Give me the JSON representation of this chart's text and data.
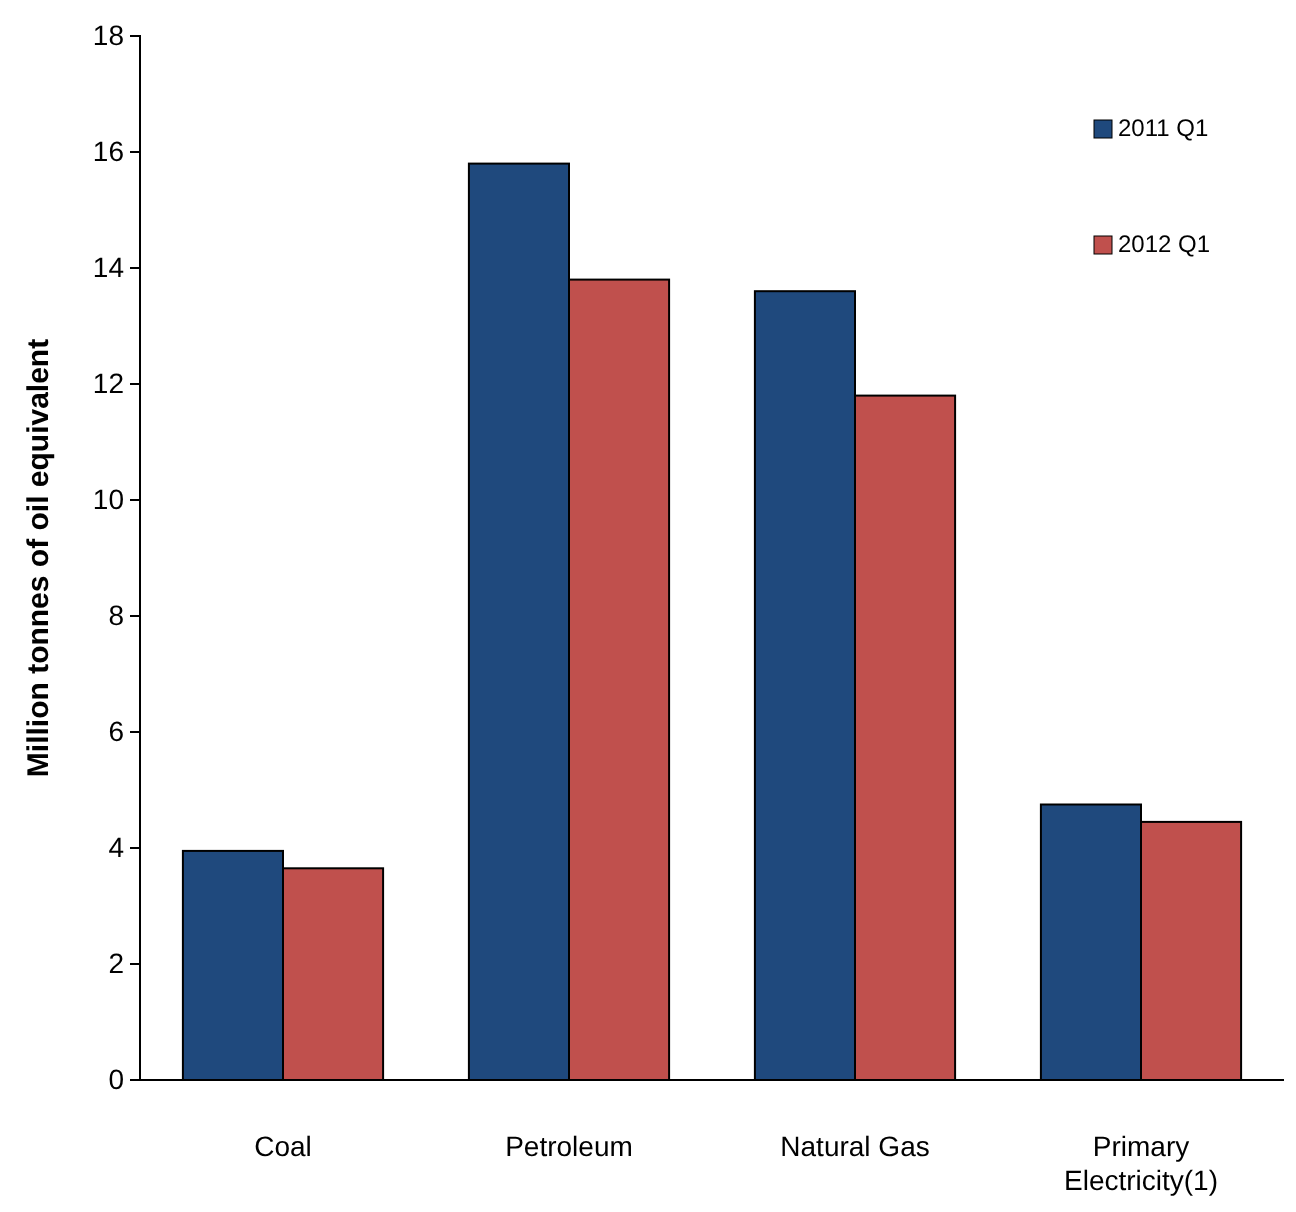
{
  "chart_data": {
    "type": "bar",
    "ylabel": "Million tonnes of oil equivalent",
    "categories": [
      "Coal",
      "Petroleum",
      "Natural Gas",
      "Primary Electricity(1)"
    ],
    "series": [
      {
        "name": "2011 Q1",
        "color": "#1f497d",
        "values": [
          3.95,
          15.8,
          13.6,
          4.75
        ]
      },
      {
        "name": "2012 Q1",
        "color": "#c0504d",
        "values": [
          3.65,
          13.8,
          11.8,
          4.45
        ]
      }
    ],
    "ylim": [
      0,
      18
    ],
    "yticks": [
      0,
      2,
      4,
      6,
      8,
      10,
      12,
      14,
      16,
      18
    ],
    "grid": false,
    "legend": "top right"
  }
}
